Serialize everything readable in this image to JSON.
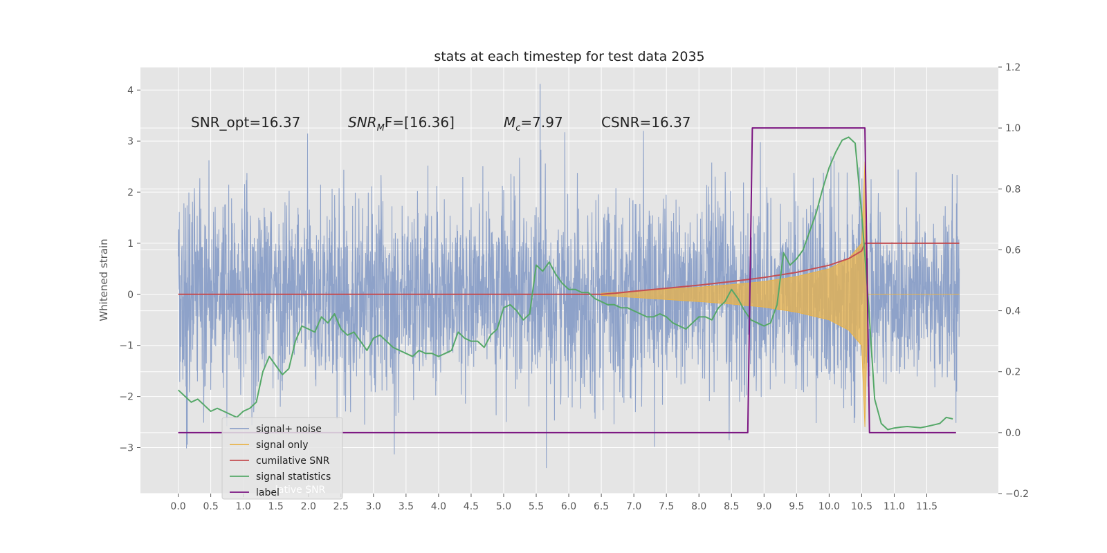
{
  "chart_data": {
    "type": "line",
    "title": "stats at each timestep for test data 2035",
    "ylabel": "Whitened strain",
    "xlabel": "",
    "x_ticks": [
      "0.0",
      "0.5",
      "1.0",
      "1.5",
      "2.0",
      "2.5",
      "3.0",
      "3.5",
      "4.0",
      "4.5",
      "5.0",
      "5.5",
      "6.0",
      "6.5",
      "7.0",
      "7.5",
      "8.0",
      "8.5",
      "9.0",
      "9.5",
      "10.0",
      "10.5",
      "11.0",
      "11.5"
    ],
    "y_ticks_left": [
      "−3",
      "−2",
      "−1",
      "0",
      "1",
      "2",
      "3",
      "4"
    ],
    "y_ticks_right": [
      "−0.2",
      "0.0",
      "0.2",
      "0.4",
      "0.6",
      "0.8",
      "1.0",
      "1.2"
    ],
    "xlim": [
      -0.58,
      12.6
    ],
    "ylim_left": [
      -3.9,
      4.45
    ],
    "ylim_right": [
      -0.2,
      1.2
    ],
    "grid": true,
    "legend_position": "lower-left",
    "annotations": [
      {
        "text": "SNR_opt=16.37"
      },
      {
        "text": "SNR_MF=[16.36]",
        "display": {
          "base": "SNR",
          "sub": "M",
          "tail": "F=[16.36]"
        }
      },
      {
        "text": "M_c=7.97",
        "display": {
          "base": "M",
          "sub": "c",
          "tail": "=7.97"
        }
      },
      {
        "text": "CSNR=16.37"
      }
    ],
    "legend_ghost_text": "lative SNR",
    "series": [
      {
        "name": "signal+ noise",
        "axis": "left",
        "color": "#8ea2c9",
        "kind": "noise",
        "x_range": [
          0.0,
          12.0
        ],
        "std": 0.95,
        "max": 4.12,
        "min": -3.6
      },
      {
        "name": "signal only",
        "axis": "left",
        "color": "#e9b34a",
        "kind": "chirp_envelope",
        "envelope": {
          "x": [
            6.5,
            7.0,
            7.5,
            8.0,
            8.5,
            9.0,
            9.5,
            10.0,
            10.3,
            10.5,
            10.55,
            10.6,
            12.0
          ],
          "y": [
            0.02,
            0.06,
            0.1,
            0.14,
            0.19,
            0.25,
            0.35,
            0.5,
            0.7,
            1.0,
            2.6,
            0.0,
            0.0
          ]
        }
      },
      {
        "name": "cumilative SNR",
        "axis": "left",
        "color": "#c44e52",
        "x": [
          0.0,
          6.5,
          6.7,
          7.0,
          7.5,
          8.0,
          8.5,
          9.0,
          9.5,
          10.0,
          10.3,
          10.5,
          10.55,
          12.0
        ],
        "y": [
          0.0,
          0.0,
          0.02,
          0.06,
          0.12,
          0.18,
          0.25,
          0.33,
          0.43,
          0.57,
          0.7,
          0.85,
          1.0,
          1.0
        ]
      },
      {
        "name": "signal statistics",
        "axis": "right",
        "color": "#55a868",
        "x": [
          0.0,
          0.1,
          0.2,
          0.3,
          0.4,
          0.5,
          0.6,
          0.7,
          0.8,
          0.9,
          1.0,
          1.1,
          1.2,
          1.3,
          1.4,
          1.5,
          1.6,
          1.7,
          1.8,
          1.9,
          2.0,
          2.1,
          2.2,
          2.3,
          2.4,
          2.5,
          2.6,
          2.7,
          2.8,
          2.9,
          3.0,
          3.1,
          3.2,
          3.3,
          3.4,
          3.5,
          3.6,
          3.7,
          3.8,
          3.9,
          4.0,
          4.1,
          4.2,
          4.3,
          4.4,
          4.5,
          4.6,
          4.7,
          4.8,
          4.9,
          5.0,
          5.1,
          5.2,
          5.3,
          5.4,
          5.5,
          5.6,
          5.7,
          5.8,
          5.9,
          6.0,
          6.1,
          6.2,
          6.3,
          6.4,
          6.5,
          6.6,
          6.7,
          6.8,
          6.9,
          7.0,
          7.1,
          7.2,
          7.3,
          7.4,
          7.5,
          7.6,
          7.7,
          7.8,
          7.9,
          8.0,
          8.1,
          8.2,
          8.3,
          8.4,
          8.5,
          8.6,
          8.7,
          8.8,
          8.9,
          9.0,
          9.1,
          9.2,
          9.3,
          9.4,
          9.5,
          9.6,
          9.7,
          9.8,
          9.9,
          10.0,
          10.1,
          10.2,
          10.3,
          10.4,
          10.5,
          10.6,
          10.7,
          10.8,
          10.9,
          11.0,
          11.1,
          11.2,
          11.3,
          11.4,
          11.5,
          11.6,
          11.7,
          11.8,
          11.9
        ],
        "y": [
          0.14,
          0.12,
          0.1,
          0.11,
          0.09,
          0.07,
          0.08,
          0.07,
          0.06,
          0.05,
          0.07,
          0.08,
          0.1,
          0.2,
          0.25,
          0.22,
          0.19,
          0.21,
          0.3,
          0.35,
          0.34,
          0.33,
          0.38,
          0.36,
          0.39,
          0.34,
          0.32,
          0.33,
          0.3,
          0.27,
          0.31,
          0.32,
          0.3,
          0.28,
          0.27,
          0.26,
          0.25,
          0.27,
          0.26,
          0.26,
          0.25,
          0.26,
          0.27,
          0.33,
          0.31,
          0.3,
          0.3,
          0.28,
          0.32,
          0.34,
          0.41,
          0.42,
          0.4,
          0.37,
          0.39,
          0.55,
          0.53,
          0.56,
          0.52,
          0.49,
          0.47,
          0.47,
          0.46,
          0.46,
          0.44,
          0.43,
          0.42,
          0.42,
          0.41,
          0.41,
          0.4,
          0.39,
          0.38,
          0.38,
          0.39,
          0.38,
          0.36,
          0.35,
          0.34,
          0.36,
          0.38,
          0.38,
          0.37,
          0.41,
          0.43,
          0.47,
          0.44,
          0.4,
          0.37,
          0.36,
          0.35,
          0.36,
          0.42,
          0.59,
          0.55,
          0.57,
          0.6,
          0.66,
          0.72,
          0.8,
          0.87,
          0.92,
          0.96,
          0.97,
          0.95,
          0.72,
          0.44,
          0.11,
          0.03,
          0.01,
          0.015,
          0.018,
          0.02,
          0.018,
          0.016,
          0.02,
          0.025,
          0.03,
          0.05,
          0.045
        ]
      },
      {
        "name": "label",
        "axis": "right",
        "color": "#7b1581",
        "x": [
          0.0,
          8.75,
          8.82,
          10.55,
          10.62,
          11.95
        ],
        "y": [
          0.0,
          0.0,
          1.0,
          1.0,
          0.0,
          0.0
        ]
      }
    ]
  }
}
